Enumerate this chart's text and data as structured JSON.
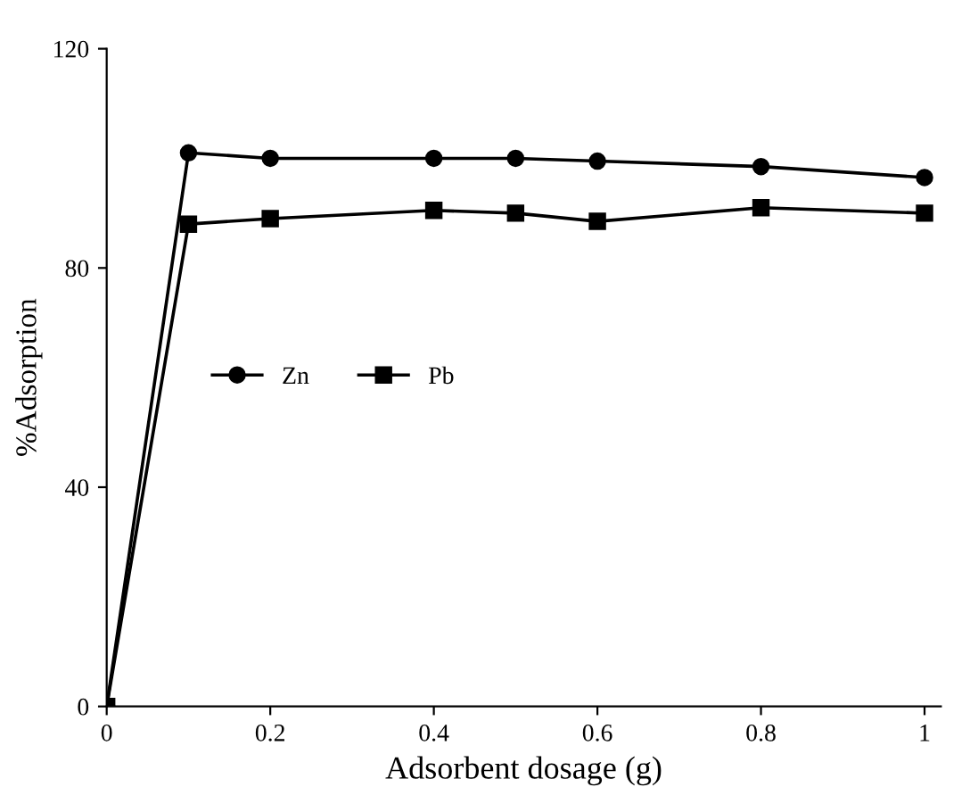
{
  "chart_data": {
    "type": "line",
    "xlabel": "Adsorbent dosage (g)",
    "ylabel": "%Adsorption",
    "x": [
      0,
      0.1,
      0.2,
      0.4,
      0.5,
      0.6,
      0.8,
      1.0
    ],
    "series": [
      {
        "name": "Zn",
        "color": "#000000",
        "marker": "circle",
        "values": [
          0,
          101,
          100,
          100,
          100,
          99.5,
          98.5,
          96.5
        ]
      },
      {
        "name": "Pb",
        "color": "#000000",
        "marker": "square",
        "values": [
          0,
          88,
          89,
          90.5,
          90,
          88.5,
          91,
          90
        ]
      }
    ],
    "xlim": [
      0,
      1.02
    ],
    "ylim": [
      0,
      120
    ],
    "xticks": [
      0,
      0.2,
      0.4,
      0.6,
      0.8,
      1
    ],
    "yticks": [
      0,
      40,
      80,
      120
    ],
    "legend": "center left",
    "grid": false,
    "line_style": "solid"
  }
}
